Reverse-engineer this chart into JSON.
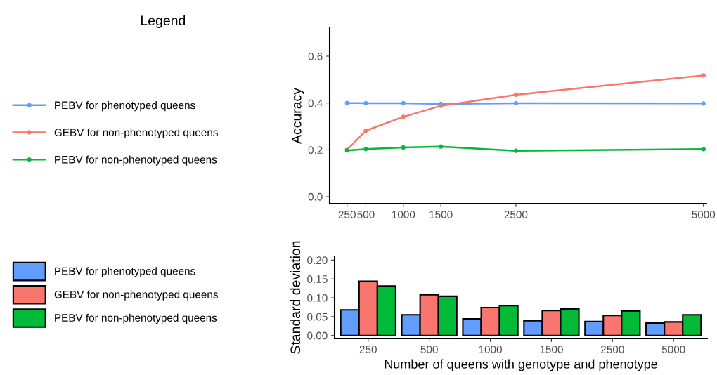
{
  "chart_data": [
    {
      "type": "line",
      "ylabel": "Accuracy",
      "x": [
        250,
        500,
        1000,
        1500,
        2500,
        5000
      ],
      "xlim": [
        18,
        5040
      ],
      "xticks": [
        250,
        500,
        1000,
        1500,
        2500,
        5000
      ],
      "ylim": [
        -0.03,
        0.72
      ],
      "yticks": [
        {
          "value": 0,
          "label": "0.0"
        },
        0.2,
        0.4,
        0.6
      ],
      "legend": "left",
      "legend_title": "Legend",
      "marker": "circle",
      "grid": false,
      "series": [
        {
          "name": "PEBV for phenotyped queens",
          "color": "#619cff",
          "values": [
            0.4,
            0.399,
            0.399,
            0.396,
            0.399,
            0.398
          ]
        },
        {
          "name": "GEBV for non-phenotyped queens",
          "color": "#f8766d",
          "values": [
            0.2,
            0.282,
            0.341,
            0.388,
            0.435,
            0.518
          ]
        },
        {
          "name": "PEBV for non-phenotyped queens",
          "color": "#00ba38",
          "values": [
            0.197,
            0.203,
            0.21,
            0.214,
            0.196,
            0.203
          ]
        }
      ]
    },
    {
      "type": "bar",
      "ylabel": "Standard deviation",
      "xlabel": "Number of queens with genotype and phenotype",
      "categories": [
        "250",
        "500",
        "1000",
        "1500",
        "2500",
        "5000"
      ],
      "ylim": [
        -0.008,
        0.21
      ],
      "yticks": [
        {
          "value": 0,
          "label": "0.00"
        },
        0.05,
        {
          "value": 0.1,
          "label": "0.10"
        },
        0.15,
        {
          "value": 0.2,
          "label": "0.20"
        }
      ],
      "legend": "left",
      "grid": false,
      "series": [
        {
          "name": "PEBV for phenotyped queens",
          "color": "#619cff",
          "values": [
            0.068,
            0.055,
            0.044,
            0.039,
            0.037,
            0.033
          ]
        },
        {
          "name": "GEBV for non-phenotyped queens",
          "color": "#f8766d",
          "values": [
            0.144,
            0.108,
            0.074,
            0.066,
            0.053,
            0.036
          ]
        },
        {
          "name": "PEBV for non-phenotyped queens",
          "color": "#00ba38",
          "values": [
            0.131,
            0.104,
            0.079,
            0.07,
            0.065,
            0.055
          ]
        }
      ]
    }
  ]
}
